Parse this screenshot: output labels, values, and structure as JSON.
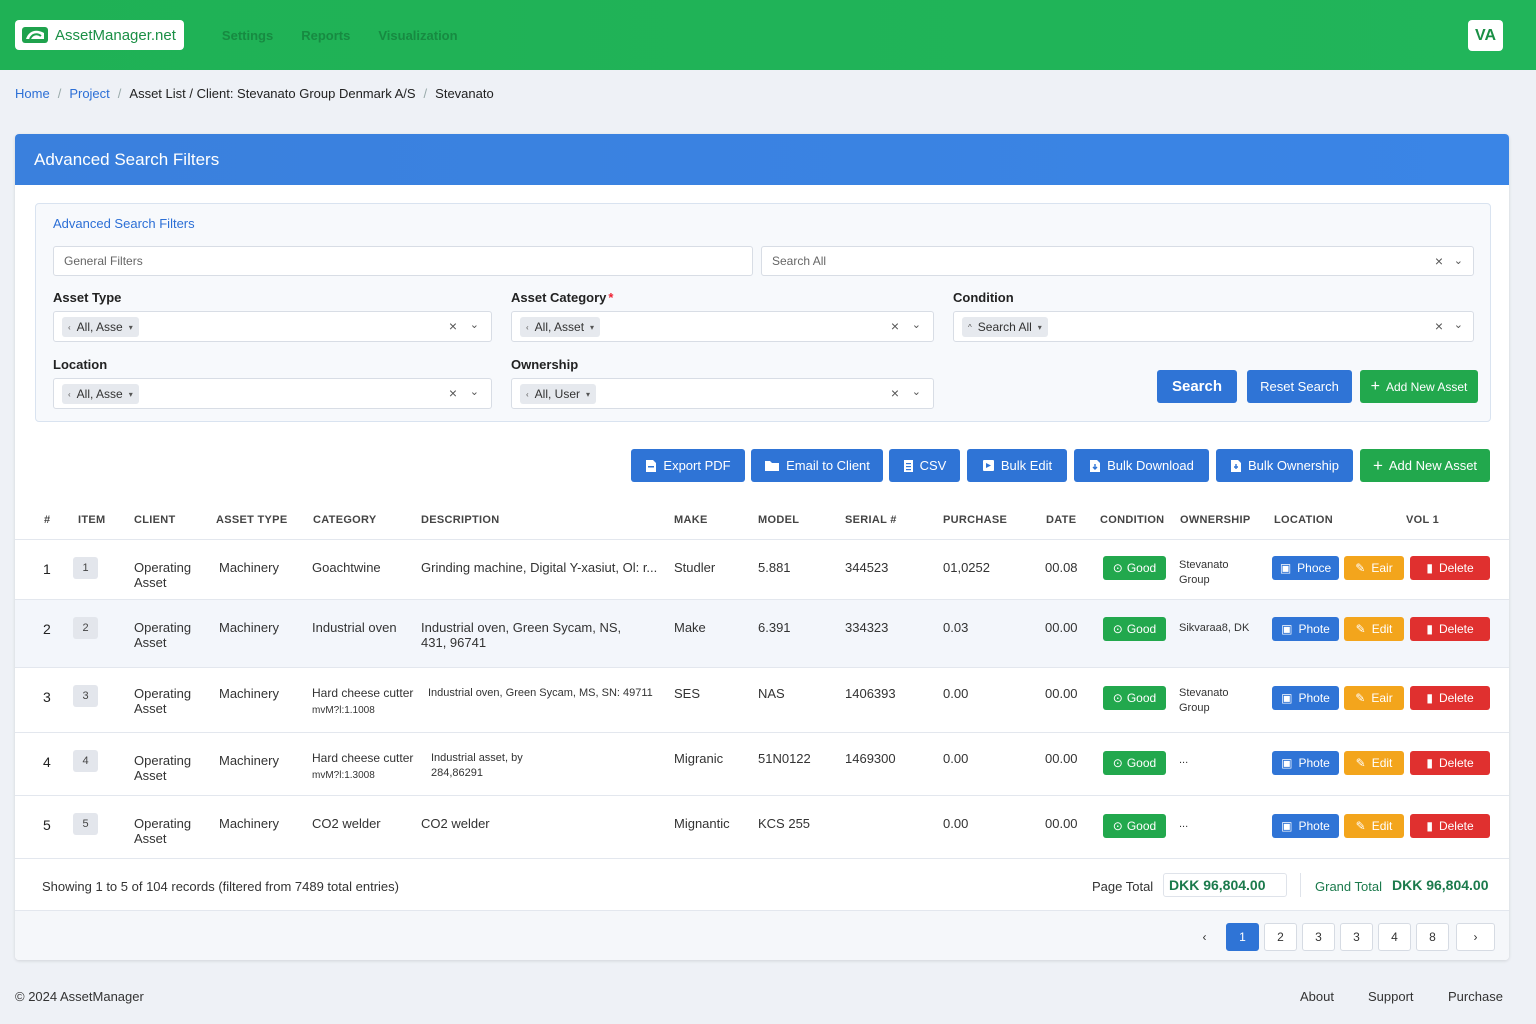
{
  "app": {
    "logo_text": "AssetManager.net",
    "nav": [
      "Settings",
      "Reports",
      "Visualization"
    ],
    "avatar": "VA"
  },
  "breadcrumb": {
    "home": "Home",
    "project": "Project",
    "current": "Asset List / Client: Stevanato Group Denmark A/S",
    "last": "Stevanato"
  },
  "card": {
    "header": "Advanced Search Filters",
    "filter_title": "Advanced Search Filters",
    "general_filters_placeholder": "General Filters",
    "search_all_value": "Search All",
    "asset_type": {
      "label": "Asset Type",
      "chip": "All, Asse"
    },
    "asset_category": {
      "label": "Asset Category",
      "required": "*",
      "chip": "All, Asset"
    },
    "condition": {
      "label": "Condition",
      "chip": "Search All"
    },
    "location": {
      "label": "Location",
      "chip": "All, Asse"
    },
    "ownership": {
      "label": "Ownership",
      "chip": "All, User"
    },
    "search_btn": "Search",
    "reset_btn": "Reset Search",
    "add_btn_small": "Add New Asset"
  },
  "toolbar": {
    "export_pdf": "Export PDF",
    "email_client": "Email to Client",
    "csv": "CSV",
    "bulk_edit": "Bulk Edit",
    "bulk_download": "Bulk Download",
    "bulk_ownership": "Bulk Ownership",
    "add_new_asset": "Add New Asset"
  },
  "table": {
    "headers": {
      "num": "#",
      "item": "ITEM",
      "client": "CLIENT",
      "asset_type": "ASSET TYPE",
      "category": "CATEGORY",
      "description": "DESCRIPTION",
      "make": "MAKE",
      "model": "MODEL",
      "serial": "SERIAL #",
      "purchase": "PURCHASE",
      "date": "DATE",
      "condition": "CONDITION",
      "ownership": "OWNERSHIP",
      "location": "LOCATION",
      "vol": "VOL 1"
    },
    "rows": [
      {
        "num": "1",
        "item": "1",
        "client1": "Operating",
        "client2": "Asset",
        "type": "Machinery",
        "cat1": "Goachtwine",
        "cat2": "",
        "desc1": "Grinding machine, Digital Y-xasiut, Ol: r...",
        "desc2": "",
        "make": "Studler",
        "model": "5.881",
        "serial": "344523",
        "purchase": "01,0252",
        "date": "00.08",
        "cond": "Good",
        "own1": "Stevanato",
        "own2": "Group",
        "photo": "Phoce",
        "edit": "Eair",
        "delete": "Delete"
      },
      {
        "num": "2",
        "item": "2",
        "client1": "Operating",
        "client2": "Asset",
        "type": "Machinery",
        "cat1": "Industrial oven",
        "cat2": "",
        "desc1": "Industrial oven, Green Sycam, NS,",
        "desc2": "431, 96741",
        "make": "Make",
        "model": "6.391",
        "serial": "334323",
        "purchase": "0.03",
        "date": "00.00",
        "cond": "Good",
        "own1": "Sikvaraa8, DK",
        "own2": "",
        "photo": "Phote",
        "edit": "Edit",
        "delete": "Delete"
      },
      {
        "num": "3",
        "item": "3",
        "client1": "Operating",
        "client2": "Asset",
        "type": "Machinery",
        "cat1": "Hard cheese cutter",
        "cat2": "mvM?l:1.1008",
        "desc1": "Industrial oven, Green Sycam, MS, SN: 49711",
        "desc2": "",
        "make": "SES",
        "model": "NAS",
        "serial": "1406393",
        "purchase": "0.00",
        "date": "00.00",
        "cond": "Good",
        "own1": "Stevanato",
        "own2": "Group",
        "photo": "Phote",
        "edit": "Eair",
        "delete": "Delete"
      },
      {
        "num": "4",
        "item": "4",
        "client1": "Operating",
        "client2": "Asset",
        "type": "Machinery",
        "cat1": "Hard cheese cutter",
        "cat2": "mvM?l:1.3008",
        "desc1": "Industrial asset, by",
        "desc2": "284,86291",
        "make": "Migranic",
        "model": "51N0122",
        "serial": "1469300",
        "purchase": "0.00",
        "date": "00.00",
        "cond": "Good",
        "own1": "...",
        "own2": "",
        "photo": "Phote",
        "edit": "Edit",
        "delete": "Delete"
      },
      {
        "num": "5",
        "item": "5",
        "client1": "Operating",
        "client2": "Asset",
        "type": "Machinery",
        "cat1": "CO2 welder",
        "cat2": "",
        "desc1": "CO2 welder",
        "desc2": "",
        "make": "Mignantic",
        "model": "KCS 255",
        "serial": "",
        "purchase": "0.00",
        "date": "00.00",
        "cond": "Good",
        "own1": "...",
        "own2": "",
        "photo": "Phote",
        "edit": "Edit",
        "delete": "Delete"
      }
    ],
    "showing": "Showing 1 to 5 of 104 records (filtered from 7489 total entries)",
    "page_total_label": "Page Total",
    "page_total_value": "DKK 96,804.00",
    "grand_total_label": "Grand Total",
    "grand_total_value": "DKK 96,804.00"
  },
  "pagination": {
    "prev": "‹",
    "pages": [
      "1",
      "2",
      "3",
      "3",
      "4",
      "8"
    ],
    "next": "›"
  },
  "footer": {
    "copyright": "© 2024 AssetManager",
    "links": [
      "About",
      "Support",
      "Purchase"
    ]
  },
  "colors": {
    "nav_green": "#1fb155",
    "primary_blue": "#2f74d6",
    "success_green": "#22a84d",
    "warning_orange": "#f3a51c",
    "danger_red": "#e0302f"
  }
}
